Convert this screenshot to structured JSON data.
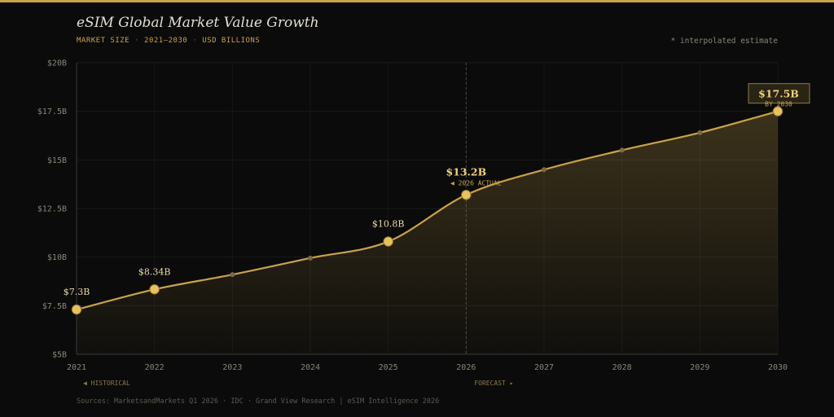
{
  "header": {
    "title": "eSIM Global Market Value Growth",
    "sub_market": "MARKET SIZE",
    "sub_range": "2021–2030",
    "sub_unit": "USD BILLIONS",
    "sub_sep": "·",
    "note": "* interpolated estimate"
  },
  "footer": {
    "sources": "Sources: MarketsandMarkets Q1 2026 · IDC · Grand View Research  |  eSIM Intelligence 2026"
  },
  "colors": {
    "accent": "#c9a24a",
    "line": "#c9a24a",
    "point_major": "#e8c15c",
    "point_minor": "#7a6a45",
    "background": "#0b0b0b"
  },
  "chart_data": {
    "type": "area",
    "title": "eSIM Global Market Value Growth",
    "xlabel": "",
    "ylabel": "",
    "x": [
      2021,
      2022,
      2023,
      2024,
      2025,
      2026,
      2027,
      2028,
      2029,
      2030
    ],
    "series": [
      {
        "values": [
          7.3,
          8.34,
          9.1,
          9.95,
          10.8,
          13.2,
          14.5,
          15.5,
          16.4,
          17.5
        ]
      }
    ],
    "major_points": [
      2021,
      2022,
      2025,
      2026,
      2030
    ],
    "point_labels": {
      "2021": "$7.3B",
      "2022": "$8.34B",
      "2025": "$10.8B",
      "2026": "$13.2B",
      "2030": "$17.5B"
    },
    "y_ticks": [
      5,
      7.5,
      10,
      12.5,
      15,
      17.5,
      20
    ],
    "y_tick_labels": [
      "$5B",
      "$7.5B",
      "$10B",
      "$12.5B",
      "$15B",
      "$17.5B",
      "$20B"
    ],
    "ylim": [
      5,
      20
    ],
    "xlim": [
      2021,
      2030
    ],
    "grid": true,
    "divider_year": 2026,
    "annotation_2026": "◀ 2026 ACTUAL",
    "callout_value": "$17.5B",
    "callout_sub": "BY 2030",
    "region_left": "◀ HISTORICAL",
    "region_right": "FORECAST ▸"
  }
}
